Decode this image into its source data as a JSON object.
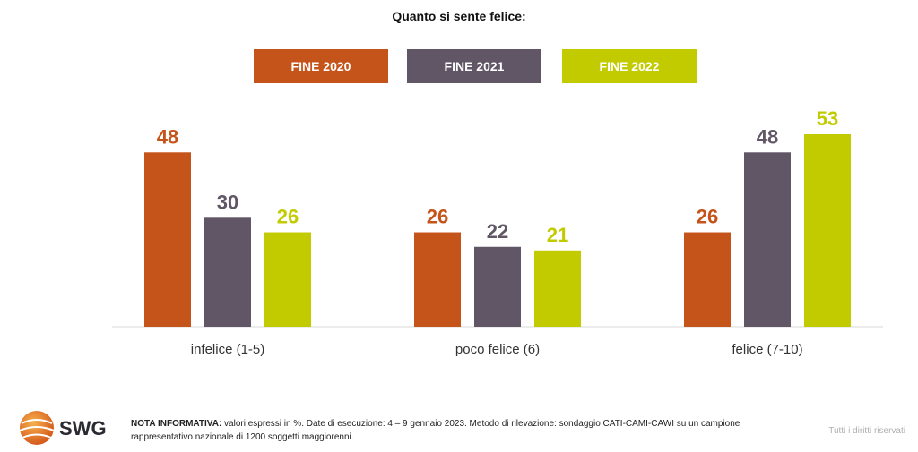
{
  "chart_data": {
    "type": "bar",
    "title": "Quanto si sente felice:",
    "categories": [
      "infelice (1-5)",
      "poco felice (6)",
      "felice (7-10)"
    ],
    "series": [
      {
        "name": "FINE 2020",
        "color": "#c5541a",
        "values": [
          48,
          26,
          26
        ]
      },
      {
        "name": "FINE 2021",
        "color": "#615666",
        "values": [
          30,
          22,
          48
        ]
      },
      {
        "name": "FINE 2022",
        "color": "#c2cb00",
        "values": [
          26,
          21,
          53
        ]
      }
    ],
    "ylim": [
      0,
      53
    ],
    "grid": false,
    "legend_position": "top"
  },
  "footer": {
    "logo_text": "SWG",
    "note_label": "NOTA INFORMATIVA:",
    "note_text": " valori espressi in %. Date di esecuzione: 4 – 9 gennaio 2023. Metodo di rilevazione: sondaggio CATI-CAMI-CAWI su un campione rappresentativo nazionale di 1200 soggetti maggiorenni.",
    "rights": "Tutti i diritti riservati"
  }
}
